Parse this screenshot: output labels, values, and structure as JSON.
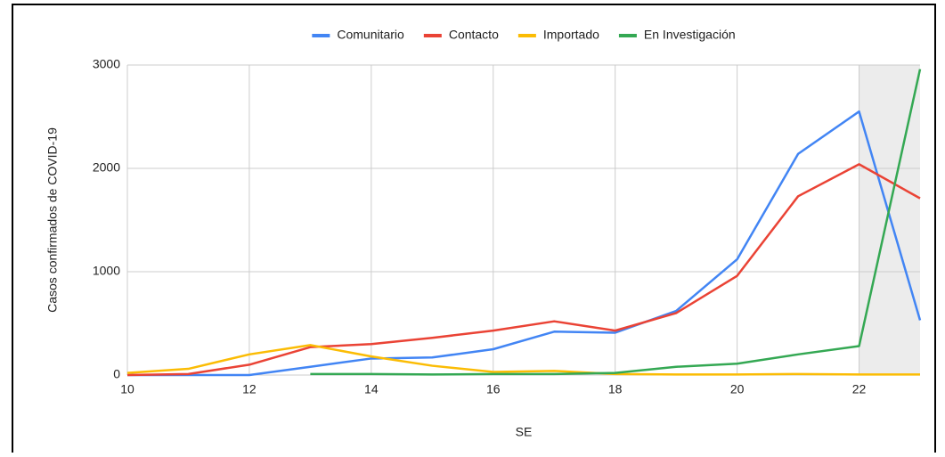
{
  "chart_data": {
    "type": "line",
    "x": [
      10,
      11,
      12,
      13,
      14,
      15,
      16,
      17,
      18,
      19,
      20,
      21,
      22,
      23
    ],
    "series": [
      {
        "name": "Comunitario",
        "color": "#4285f4",
        "values": [
          0,
          0,
          0,
          80,
          160,
          170,
          250,
          420,
          410,
          620,
          1120,
          2140,
          2550,
          530
        ]
      },
      {
        "name": "Contacto",
        "color": "#ea4335",
        "values": [
          0,
          10,
          100,
          270,
          300,
          360,
          430,
          520,
          430,
          600,
          960,
          1730,
          2040,
          1710
        ]
      },
      {
        "name": "Importado",
        "color": "#fbbc04",
        "values": [
          20,
          60,
          200,
          290,
          180,
          90,
          30,
          40,
          10,
          5,
          5,
          10,
          5,
          5
        ]
      },
      {
        "name": "En Investigación",
        "color": "#34a853",
        "values": [
          null,
          null,
          null,
          10,
          10,
          5,
          10,
          10,
          20,
          80,
          110,
          200,
          280,
          2960
        ]
      }
    ],
    "xlabel": "SE",
    "ylabel": "Casos confirmados de COVID-19",
    "xlim": [
      10,
      23
    ],
    "xticks": [
      10,
      12,
      14,
      16,
      18,
      20,
      22
    ],
    "ylim": [
      0,
      3000
    ],
    "yticks": [
      0,
      1000,
      2000,
      3000
    ],
    "grid": true,
    "legend": "top",
    "highlight_x": [
      22,
      23
    ]
  }
}
